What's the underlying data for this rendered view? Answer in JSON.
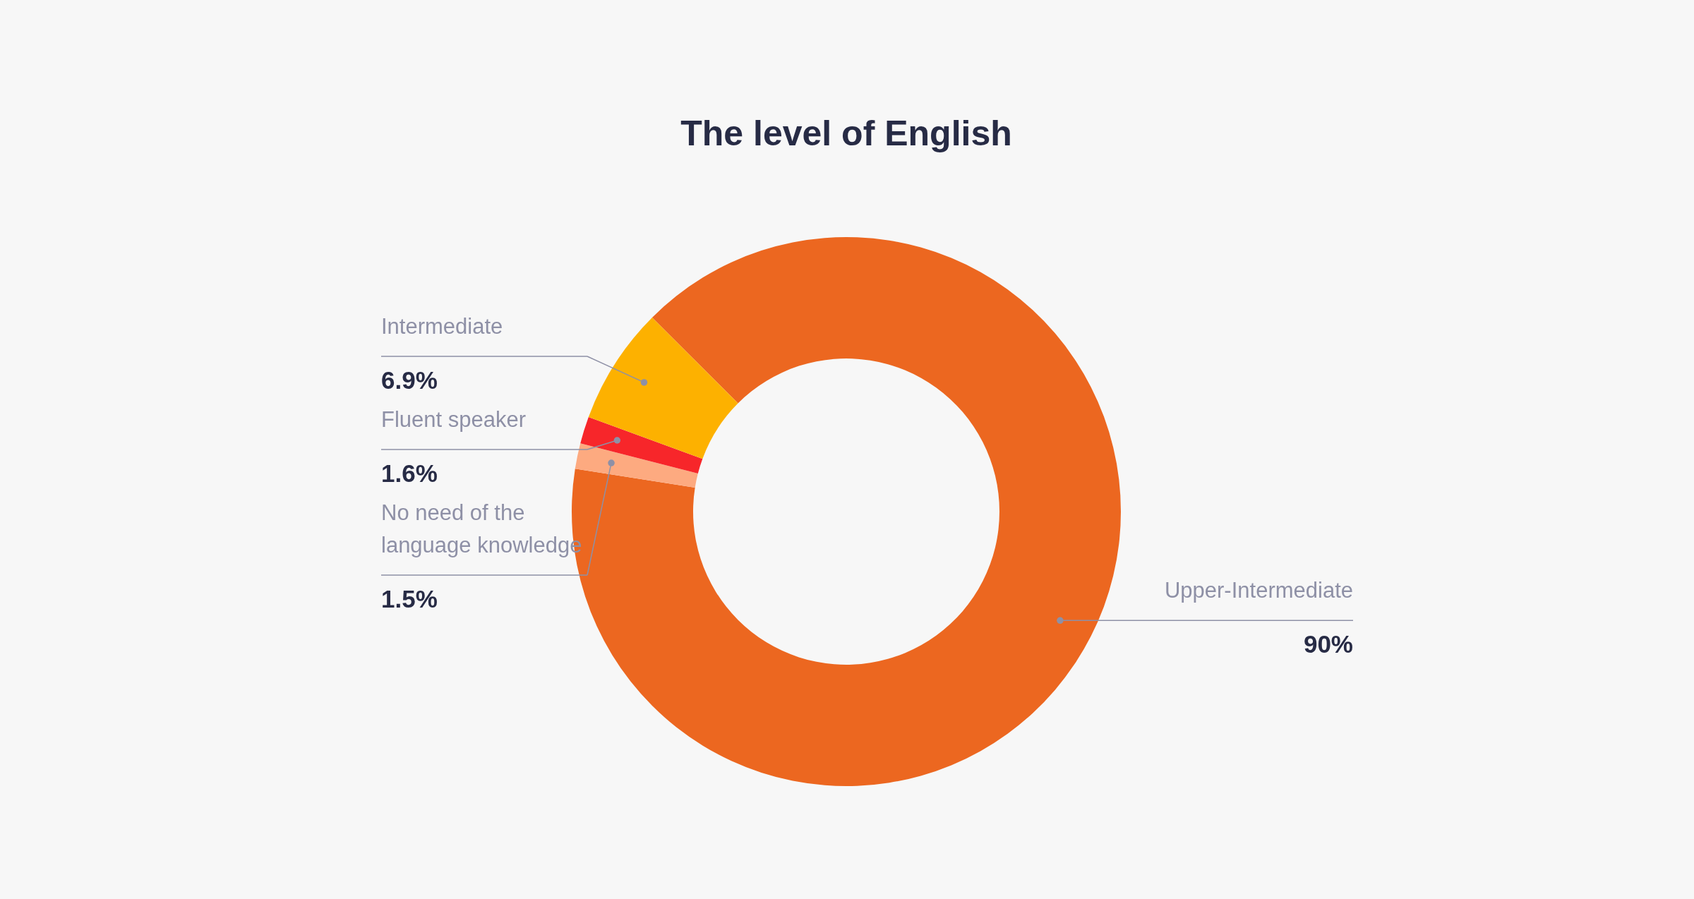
{
  "chart_data": {
    "type": "donut",
    "title": "The level of English",
    "categories": [
      "Upper-Intermediate",
      "No need of the language knowledge",
      "Fluent speaker",
      "Intermediate"
    ],
    "values": [
      90,
      1.5,
      1.6,
      6.9
    ],
    "colors": [
      "#ec6720",
      "#fdaa80",
      "#f7262a",
      "#fdb100"
    ],
    "value_labels": [
      "90%",
      "1.5%",
      "1.6%",
      "6.9%"
    ]
  }
}
